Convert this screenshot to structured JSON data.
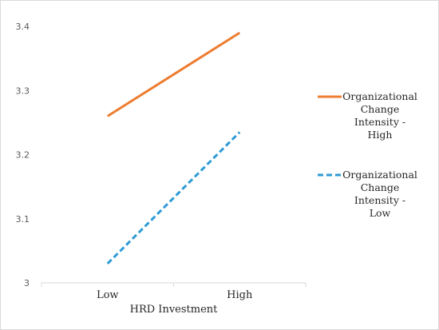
{
  "chart_data": {
    "type": "line",
    "title": "",
    "xlabel": "HRD Investment",
    "ylabel": "",
    "categories": [
      "Low",
      "High"
    ],
    "ylim": [
      3,
      3.4
    ],
    "yticks": [
      "3",
      "3.1",
      "3.2",
      "3.3",
      "3.4"
    ],
    "y_tick_values": [
      3,
      3.1,
      3.2,
      3.3,
      3.4
    ],
    "grid": false,
    "legend_position": "right",
    "series": [
      {
        "name": "Organizational Change Intensity - High",
        "name_lines": [
          "Organizational",
          "Change",
          "Intensity -",
          "High"
        ],
        "values": [
          3.26,
          3.39
        ],
        "color": "#ED7D31",
        "dashed": false
      },
      {
        "name": "Organizational Change Intensity - Low",
        "name_lines": [
          "Organizational",
          "Change",
          "Intensity -",
          "Low"
        ],
        "values": [
          3.03,
          3.235
        ],
        "color": "#2E9BD6",
        "dashed": true
      }
    ]
  }
}
